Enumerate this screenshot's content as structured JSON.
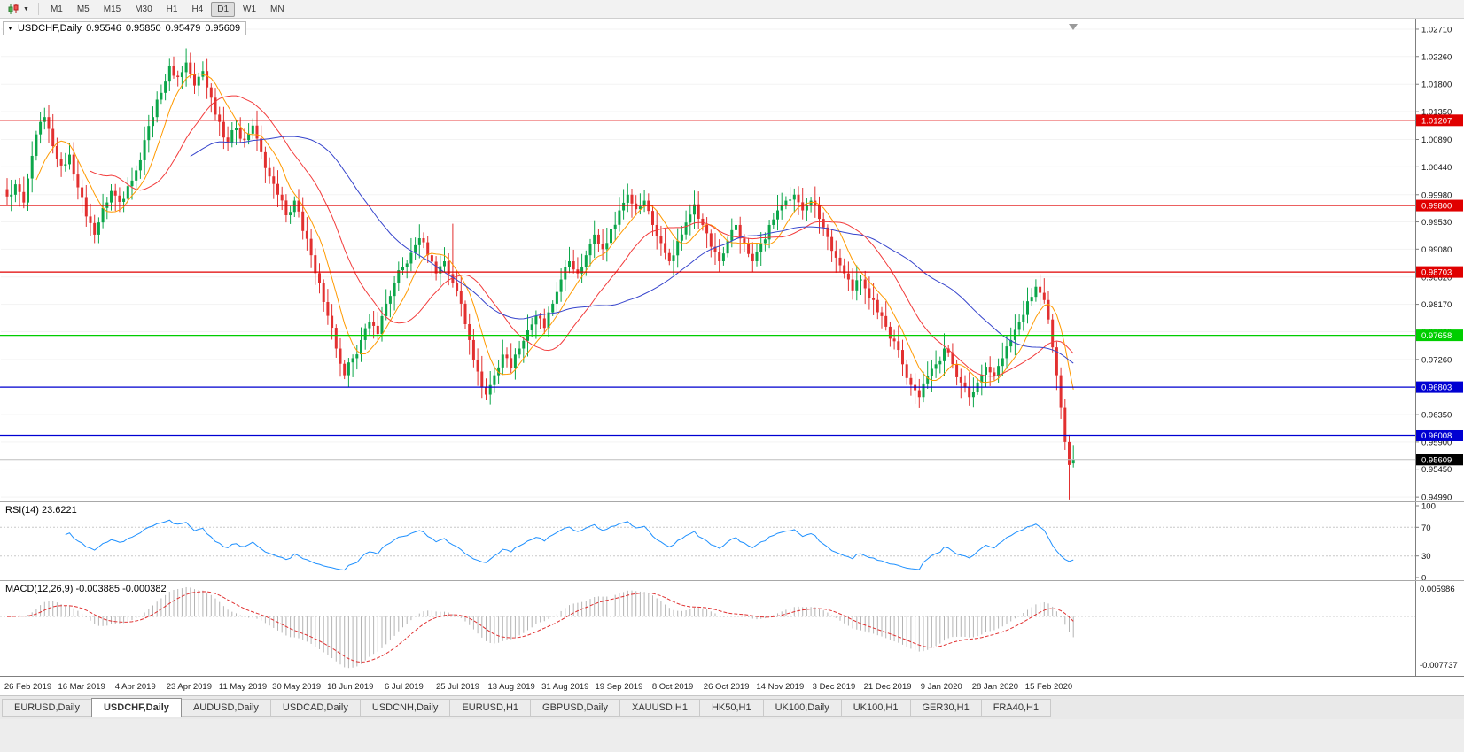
{
  "toolbar": {
    "timeframes": [
      "M1",
      "M5",
      "M15",
      "M30",
      "H1",
      "H4",
      "D1",
      "W1",
      "MN"
    ],
    "active_timeframe": "D1"
  },
  "chart": {
    "title": {
      "symbol": "USDCHF,Daily",
      "open": "0.95546",
      "high": "0.95850",
      "low": "0.95479",
      "close": "0.95609"
    }
  },
  "rsi": {
    "label": "RSI(14) 23.6221",
    "period": 14,
    "value": 23.6221,
    "axis_labels": [
      "100",
      "70",
      "30",
      "0"
    ],
    "levels": [
      70,
      30
    ]
  },
  "macd": {
    "label": "MACD(12,26,9) -0.003885 -0.000382",
    "fast": 12,
    "slow": 26,
    "signal": 9,
    "main_value": -0.003885,
    "signal_value": -0.000382,
    "axis_max_label": "0.005986",
    "axis_min_label": "-0.007737"
  },
  "tabs": {
    "active": "USDCHF,Daily",
    "items": [
      "EURUSD,Daily",
      "USDCHF,Daily",
      "AUDUSD,Daily",
      "USDCAD,Daily",
      "USDCNH,Daily",
      "EURUSD,H1",
      "GBPUSD,Daily",
      "XAUUSD,H1",
      "HK50,H1",
      "UK100,Daily",
      "UK100,H1",
      "GER30,H1",
      "FRA40,H1"
    ]
  },
  "colors": {
    "candle_up": "#0ca64a",
    "candle_down": "#e23030",
    "ma_fast": "#ff9a00",
    "ma_medium": "#f23b3b",
    "ma_slow": "#3644cc",
    "rsi_line": "#1e90ff",
    "macd_histogram": "#b4b4b4",
    "macd_signal": "#e03030",
    "hline_red": "#e00000",
    "hline_green": "#00ce00",
    "hline_blue": "#0000d2",
    "current_price_badge": "#000000"
  },
  "chart_data": {
    "type": "candlestick",
    "symbol": "USDCHF",
    "timeframe": "Daily",
    "bars": 257,
    "y_range": [
      0.94919,
      1.02812
    ],
    "price_axis_labels": [
      "1.02710",
      "1.02260",
      "1.01800",
      "1.01350",
      "1.00890",
      "1.00440",
      "0.99980",
      "0.99530",
      "0.99080",
      "0.98620",
      "0.98170",
      "0.97720",
      "0.97260",
      "0.96810",
      "0.96350",
      "0.95900",
      "0.95450",
      "0.94990"
    ],
    "date_axis_labels": [
      "26 Feb 2019",
      "16 Mar 2019",
      "4 Apr 2019",
      "23 Apr 2019",
      "11 May 2019",
      "30 May 2019",
      "18 Jun 2019",
      "6 Jul 2019",
      "25 Jul 2019",
      "13 Aug 2019",
      "31 Aug 2019",
      "19 Sep 2019",
      "8 Oct 2019",
      "26 Oct 2019",
      "14 Nov 2019",
      "3 Dec 2019",
      "21 Dec 2019",
      "9 Jan 2020",
      "28 Jan 2020",
      "15 Feb 2020"
    ],
    "hlines": [
      {
        "price": 1.01207,
        "label": "1.01207",
        "color": "#e00000"
      },
      {
        "price": 0.998,
        "label": "0.99800",
        "color": "#e00000"
      },
      {
        "price": 0.98703,
        "label": "0.98703",
        "color": "#e00000"
      },
      {
        "price": 0.97658,
        "label": "0.97658",
        "color": "#00ce00"
      },
      {
        "price": 0.96803,
        "label": "0.96803",
        "color": "#0000d2"
      },
      {
        "price": 0.96008,
        "label": "0.96008",
        "color": "#0000d2"
      }
    ],
    "current_price": {
      "value": 0.95609,
      "label": "0.95609"
    },
    "last_bar": {
      "open": 0.95546,
      "high": 0.9585,
      "low": 0.95479,
      "close": 0.95609
    },
    "close_anchors": [
      [
        0,
        0.9995
      ],
      [
        2,
        1.0015
      ],
      [
        4,
        0.9985
      ],
      [
        6,
        1.0062
      ],
      [
        8,
        1.0118
      ],
      [
        9,
        1.0126
      ],
      [
        11,
        1.0078
      ],
      [
        13,
        1.0046
      ],
      [
        15,
        1.0064
      ],
      [
        17,
        1.001
      ],
      [
        19,
        0.9962
      ],
      [
        21,
        0.9932
      ],
      [
        23,
        0.9976
      ],
      [
        25,
        1.0004
      ],
      [
        27,
        0.9986
      ],
      [
        29,
        1.0012
      ],
      [
        31,
        1.0038
      ],
      [
        33,
        1.0088
      ],
      [
        35,
        1.0126
      ],
      [
        37,
        1.0166
      ],
      [
        39,
        1.021
      ],
      [
        41,
        1.0192
      ],
      [
        43,
        1.0216
      ],
      [
        45,
        1.0178
      ],
      [
        47,
        1.0202
      ],
      [
        49,
        1.0158
      ],
      [
        51,
        1.0118
      ],
      [
        53,
        1.0084
      ],
      [
        55,
        1.0108
      ],
      [
        57,
        1.0088
      ],
      [
        59,
        1.0112
      ],
      [
        61,
        1.0068
      ],
      [
        63,
        1.0028
      ],
      [
        65,
        0.9998
      ],
      [
        67,
        0.9964
      ],
      [
        69,
        0.9988
      ],
      [
        71,
        0.9938
      ],
      [
        73,
        0.9898
      ],
      [
        75,
        0.9852
      ],
      [
        77,
        0.9798
      ],
      [
        79,
        0.9744
      ],
      [
        81,
        0.97
      ],
      [
        83,
        0.9728
      ],
      [
        85,
        0.9758
      ],
      [
        87,
        0.9788
      ],
      [
        89,
        0.9768
      ],
      [
        91,
        0.9818
      ],
      [
        93,
        0.9852
      ],
      [
        95,
        0.9878
      ],
      [
        97,
        0.9902
      ],
      [
        99,
        0.9926
      ],
      [
        101,
        0.9898
      ],
      [
        103,
        0.9868
      ],
      [
        105,
        0.9888
      ],
      [
        107,
        0.9852
      ],
      [
        109,
        0.9818
      ],
      [
        111,
        0.9758
      ],
      [
        113,
        0.9706
      ],
      [
        115,
        0.9668
      ],
      [
        117,
        0.97
      ],
      [
        119,
        0.9734
      ],
      [
        121,
        0.9712
      ],
      [
        123,
        0.9744
      ],
      [
        125,
        0.9774
      ],
      [
        127,
        0.9798
      ],
      [
        129,
        0.9778
      ],
      [
        131,
        0.9818
      ],
      [
        133,
        0.9858
      ],
      [
        135,
        0.9888
      ],
      [
        137,
        0.9868
      ],
      [
        139,
        0.9898
      ],
      [
        141,
        0.9932
      ],
      [
        143,
        0.9908
      ],
      [
        145,
        0.9942
      ],
      [
        147,
        0.9972
      ],
      [
        149,
        0.9998
      ],
      [
        151,
        0.9974
      ],
      [
        153,
        0.9988
      ],
      [
        155,
        0.9948
      ],
      [
        157,
        0.9918
      ],
      [
        159,
        0.9888
      ],
      [
        161,
        0.9922
      ],
      [
        163,
        0.9952
      ],
      [
        165,
        0.9982
      ],
      [
        167,
        0.9948
      ],
      [
        169,
        0.9912
      ],
      [
        171,
        0.9888
      ],
      [
        173,
        0.9922
      ],
      [
        175,
        0.9948
      ],
      [
        177,
        0.9918
      ],
      [
        179,
        0.9888
      ],
      [
        181,
        0.9918
      ],
      [
        183,
        0.9948
      ],
      [
        185,
        0.9972
      ],
      [
        187,
        0.9988
      ],
      [
        189,
        0.9998
      ],
      [
        191,
        0.9972
      ],
      [
        193,
        0.9988
      ],
      [
        195,
        0.9958
      ],
      [
        197,
        0.9928
      ],
      [
        199,
        0.9894
      ],
      [
        201,
        0.9868
      ],
      [
        203,
        0.984
      ],
      [
        205,
        0.9858
      ],
      [
        207,
        0.9828
      ],
      [
        209,
        0.9804
      ],
      [
        211,
        0.978
      ],
      [
        213,
        0.9756
      ],
      [
        215,
        0.9718
      ],
      [
        217,
        0.9684
      ],
      [
        219,
        0.9664
      ],
      [
        221,
        0.9698
      ],
      [
        223,
        0.9718
      ],
      [
        225,
        0.9744
      ],
      [
        227,
        0.9718
      ],
      [
        229,
        0.9688
      ],
      [
        231,
        0.9664
      ],
      [
        233,
        0.9688
      ],
      [
        235,
        0.9714
      ],
      [
        237,
        0.9698
      ],
      [
        239,
        0.9728
      ],
      [
        241,
        0.9758
      ],
      [
        243,
        0.9788
      ],
      [
        245,
        0.9822
      ],
      [
        247,
        0.9846
      ],
      [
        248,
        0.9836
      ],
      [
        249,
        0.9824
      ],
      [
        250,
        0.9792
      ],
      [
        251,
        0.9746
      ],
      [
        252,
        0.97
      ],
      [
        253,
        0.9646
      ],
      [
        254,
        0.959
      ],
      [
        255,
        0.9552
      ],
      [
        256,
        0.95609
      ]
    ],
    "high_overrides": {
      "8": 1.0135,
      "40": 1.0226,
      "47": 1.0218,
      "107": 0.995,
      "149": 1.0016,
      "189": 1.0008
    },
    "low_overrides": {
      "21": 0.9918,
      "81": 0.96935,
      "115": 0.96585,
      "219": 0.96455,
      "231": 0.965,
      "255": 0.9495
    },
    "moving_averages": [
      {
        "name": "fast",
        "window": 8,
        "color": "#ff9a00"
      },
      {
        "name": "medium",
        "window": 21,
        "color": "#f23b3b"
      },
      {
        "name": "slow",
        "window": 45,
        "color": "#3644cc"
      }
    ],
    "indicators": [
      {
        "name": "RSI",
        "period": 14,
        "last": 23.6221
      },
      {
        "name": "MACD",
        "fast": 12,
        "slow": 26,
        "signal": 9,
        "last_main": -0.003885,
        "last_signal": -0.000382
      }
    ]
  }
}
